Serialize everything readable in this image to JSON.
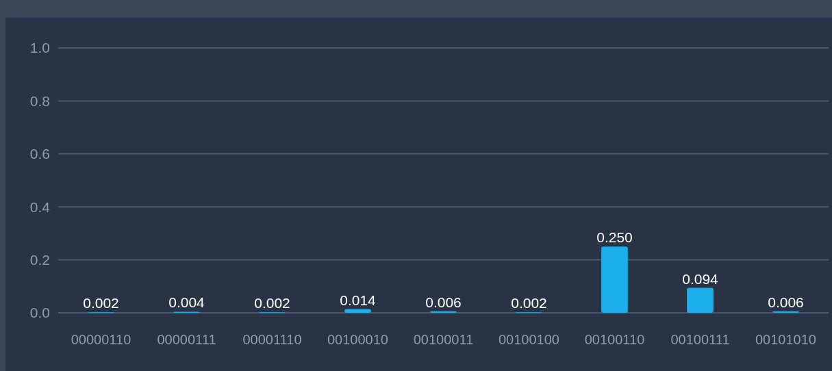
{
  "chart_data": {
    "type": "bar",
    "categories": [
      "00000110",
      "00000111",
      "00001110",
      "00100010",
      "00100011",
      "00100100",
      "00100110",
      "00100111",
      "00101010"
    ],
    "values": [
      0.002,
      0.004,
      0.002,
      0.014,
      0.006,
      0.002,
      0.25,
      0.094,
      0.006
    ],
    "value_labels": [
      "0.002",
      "0.004",
      "0.002",
      "0.014",
      "0.006",
      "0.002",
      "0.250",
      "0.094",
      "0.006"
    ],
    "color": "#1bb0ec",
    "ylim": [
      0,
      1
    ],
    "yticks": [
      {
        "value": 0,
        "label": "0.0"
      },
      {
        "value": 0.2,
        "label": "0.2"
      },
      {
        "value": 0.4,
        "label": "0.4"
      },
      {
        "value": 0.6,
        "label": "0.6"
      },
      {
        "value": 0.8,
        "label": "0.8"
      },
      {
        "value": 1,
        "label": "1.0"
      }
    ],
    "grid": "y"
  }
}
